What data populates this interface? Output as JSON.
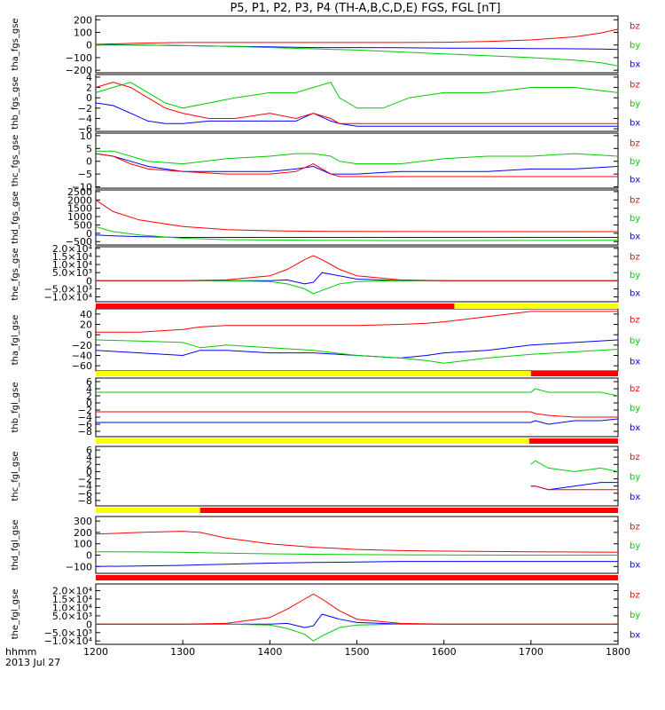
{
  "title": "P5, P1, P2, P3, P4 (TH-A,B,C,D,E) FGS, FGL [nT]",
  "x_axis": {
    "ticks": [
      "1200",
      "1300",
      "1400",
      "1500",
      "1600",
      "1700",
      "1800"
    ],
    "footer_format": "hhmm",
    "footer_date": "2013 Jul 27"
  },
  "colors": {
    "bx": "#0000ff",
    "by": "#00cc00",
    "bz": "#ff0000",
    "bar_red": "#ff0000",
    "bar_yellow": "#ffff00"
  },
  "chart_data": [
    {
      "type": "line",
      "ylabel": "tha_fgs_gse",
      "ylim": [
        -220,
        230
      ],
      "yticks": [
        "200",
        "100",
        "0",
        "−100",
        "−200"
      ],
      "ytick_values": [
        200,
        100,
        0,
        -100,
        -200
      ],
      "legend": [
        "bz",
        "by",
        "bx"
      ],
      "x": [
        1200,
        1250,
        1300,
        1350,
        1400,
        1450,
        1500,
        1550,
        1600,
        1650,
        1700,
        1750,
        1780,
        1800
      ],
      "series": [
        {
          "name": "bx",
          "values": [
            5,
            0,
            -5,
            -10,
            -15,
            -20,
            -20,
            -22,
            -25,
            -25,
            -28,
            -30,
            -32,
            -35
          ]
        },
        {
          "name": "by",
          "values": [
            0,
            0,
            -5,
            -10,
            -20,
            -30,
            -40,
            -55,
            -70,
            -85,
            -100,
            -120,
            -140,
            -165
          ]
        },
        {
          "name": "bz",
          "values": [
            5,
            15,
            20,
            20,
            20,
            20,
            20,
            20,
            22,
            28,
            40,
            65,
            95,
            125
          ]
        }
      ]
    },
    {
      "type": "line",
      "ylabel": "thb_fgs_gse",
      "ylim": [
        -6.5,
        4.5
      ],
      "yticks": [
        "4",
        "2",
        "0",
        "−2",
        "−4",
        "−6"
      ],
      "ytick_values": [
        4,
        2,
        0,
        -2,
        -4,
        -6
      ],
      "legend": [
        "bz",
        "by",
        "bx"
      ],
      "x": [
        1200,
        1220,
        1240,
        1260,
        1280,
        1300,
        1330,
        1360,
        1400,
        1430,
        1450,
        1470,
        1480,
        1500,
        1530,
        1560,
        1600,
        1650,
        1700,
        1750,
        1800
      ],
      "series": [
        {
          "name": "bx",
          "values": [
            -1,
            -1.5,
            -3,
            -4.5,
            -5,
            -5,
            -4.5,
            -4.5,
            -4.5,
            -4.5,
            -3,
            -4.5,
            -5,
            -5.5,
            -5.5,
            -5.5,
            -5.5,
            -5.5,
            -5.5,
            -5.5,
            -5.5
          ]
        },
        {
          "name": "by",
          "values": [
            1,
            2,
            3,
            1,
            -1,
            -2,
            -1,
            0,
            1,
            1,
            2,
            3,
            0,
            -2,
            -2,
            0,
            1,
            1,
            2,
            2,
            1
          ]
        },
        {
          "name": "bz",
          "values": [
            2,
            3,
            2,
            0,
            -2,
            -3,
            -4,
            -4,
            -3,
            -4,
            -3,
            -4,
            -5,
            -5,
            -5,
            -5,
            -5,
            -5,
            -5,
            -5,
            -5
          ]
        }
      ]
    },
    {
      "type": "line",
      "ylabel": "thc_fgs_gse",
      "ylim": [
        -10.5,
        11
      ],
      "yticks": [
        "10",
        "5",
        "0",
        "−5",
        "−10"
      ],
      "ytick_values": [
        10,
        5,
        0,
        -5,
        -10
      ],
      "legend": [
        "bz",
        "by",
        "bx"
      ],
      "x": [
        1200,
        1220,
        1240,
        1260,
        1300,
        1350,
        1400,
        1430,
        1450,
        1470,
        1480,
        1500,
        1550,
        1600,
        1650,
        1700,
        1750,
        1800
      ],
      "series": [
        {
          "name": "bx",
          "values": [
            3,
            2,
            0,
            -2,
            -4,
            -4,
            -4,
            -3,
            -2,
            -5,
            -5,
            -5,
            -4,
            -4,
            -4,
            -3,
            -3,
            -2
          ]
        },
        {
          "name": "by",
          "values": [
            4,
            4,
            2,
            0,
            -1,
            1,
            2,
            3,
            3,
            2,
            0,
            -1,
            -1,
            1,
            2,
            2,
            3,
            2
          ]
        },
        {
          "name": "bz",
          "values": [
            3,
            2,
            -1,
            -3,
            -4,
            -5,
            -5,
            -4,
            -1,
            -5,
            -6,
            -6,
            -6,
            -6,
            -6,
            -6,
            -6,
            -6
          ]
        }
      ]
    },
    {
      "type": "line",
      "ylabel": "thd_fgs_gse",
      "ylim": [
        -700,
        2600
      ],
      "yticks": [
        "2500",
        "2000",
        "1500",
        "1000",
        "500",
        "0",
        "−500"
      ],
      "ytick_values": [
        2500,
        2000,
        1500,
        1000,
        500,
        0,
        -500
      ],
      "legend": [
        "bz",
        "by",
        "bx"
      ],
      "x": [
        1200,
        1220,
        1250,
        1300,
        1350,
        1400,
        1450,
        1500,
        1550,
        1600,
        1700,
        1800
      ],
      "series": [
        {
          "name": "bx",
          "values": [
            -100,
            -150,
            -200,
            -250,
            -250,
            -250,
            -250,
            -250,
            -250,
            -250,
            -250,
            -250
          ]
        },
        {
          "name": "by",
          "values": [
            400,
            100,
            -100,
            -300,
            -380,
            -400,
            -420,
            -430,
            -440,
            -440,
            -430,
            -420
          ]
        },
        {
          "name": "bz",
          "values": [
            2000,
            1300,
            800,
            400,
            220,
            150,
            120,
            110,
            105,
            100,
            100,
            100
          ]
        }
      ]
    },
    {
      "type": "line",
      "ylabel": "the_fgs_gse",
      "ylim": [
        -13000,
        21000
      ],
      "yticks": [
        "2.0×10⁴",
        "1.5×10⁴",
        "1.0×10⁴",
        "5.0×10³",
        "0",
        "−5.0×10³",
        "−1.0×10⁴"
      ],
      "ytick_values": [
        20000,
        15000,
        10000,
        5000,
        0,
        -5000,
        -10000
      ],
      "legend": [
        "bz",
        "by",
        "bx"
      ],
      "x": [
        1200,
        1300,
        1350,
        1400,
        1420,
        1440,
        1450,
        1460,
        1480,
        1500,
        1550,
        1600,
        1700,
        1800
      ],
      "series": [
        {
          "name": "bx",
          "values": [
            0,
            0,
            0,
            0,
            500,
            -2000,
            -1000,
            5000,
            3000,
            1000,
            0,
            0,
            0,
            0
          ]
        },
        {
          "name": "by",
          "values": [
            0,
            0,
            0,
            -500,
            -2000,
            -5000,
            -8000,
            -6000,
            -2000,
            -500,
            0,
            0,
            0,
            0
          ]
        },
        {
          "name": "bz",
          "values": [
            0,
            0,
            500,
            3000,
            7000,
            13000,
            15500,
            13000,
            7000,
            3000,
            500,
            0,
            0,
            0
          ]
        }
      ]
    },
    {
      "type": "line",
      "ylabel": "tha_fgl_gse",
      "ylim": [
        -70,
        50
      ],
      "yticks": [
        "40",
        "20",
        "0",
        "−20",
        "−40",
        "−60"
      ],
      "ytick_values": [
        40,
        20,
        0,
        -20,
        -40,
        -60
      ],
      "legend": [
        "bz",
        "by",
        "bx"
      ],
      "x": [
        1200,
        1250,
        1300,
        1320,
        1350,
        1400,
        1450,
        1500,
        1550,
        1580,
        1600,
        1650,
        1700,
        1750,
        1800
      ],
      "series": [
        {
          "name": "bx",
          "values": [
            -30,
            -35,
            -40,
            -30,
            -30,
            -35,
            -35,
            -40,
            -45,
            -40,
            -35,
            -30,
            -20,
            -15,
            -10
          ]
        },
        {
          "name": "by",
          "values": [
            -10,
            -12,
            -15,
            -25,
            -20,
            -25,
            -30,
            -40,
            -45,
            -50,
            -55,
            -45,
            -38,
            -33,
            -28
          ]
        },
        {
          "name": "bz",
          "values": [
            5,
            5,
            10,
            15,
            18,
            18,
            18,
            18,
            20,
            22,
            25,
            35,
            45,
            45,
            45
          ]
        }
      ]
    },
    {
      "type": "line",
      "ylabel": "thb_fgl_gse",
      "ylim": [
        -9.5,
        7
      ],
      "yticks": [
        "6",
        "4",
        "2",
        "0",
        "−2",
        "−4",
        "−6",
        "−8"
      ],
      "ytick_values": [
        6,
        4,
        2,
        0,
        -2,
        -4,
        -6,
        -8
      ],
      "legend": [
        "bz",
        "by",
        "bx"
      ],
      "x": [
        1200,
        1500,
        1700,
        1705,
        1720,
        1750,
        1780,
        1800
      ],
      "series": [
        {
          "name": "bx",
          "values": [
            -5.5,
            -5.5,
            -5.5,
            -5,
            -6,
            -5,
            -5,
            -4.5
          ]
        },
        {
          "name": "by",
          "values": [
            3,
            3,
            3,
            4,
            3,
            3,
            3,
            2
          ]
        },
        {
          "name": "bz",
          "values": [
            -2.5,
            -2.5,
            -2.5,
            -3,
            -3.5,
            -4,
            -4,
            -4
          ]
        }
      ]
    },
    {
      "type": "line",
      "ylabel": "thc_fgl_gse",
      "ylim": [
        -9.5,
        7
      ],
      "yticks": [
        "6",
        "4",
        "2",
        "0",
        "−2",
        "−4",
        "−6",
        "−8"
      ],
      "ytick_values": [
        6,
        4,
        2,
        0,
        -2,
        -4,
        -6,
        -8
      ],
      "legend": [
        "bz",
        "by",
        "bx"
      ],
      "x": [
        1700,
        1705,
        1720,
        1750,
        1780,
        1800
      ],
      "series": [
        {
          "name": "bx",
          "values": [
            -4,
            -4,
            -5,
            -4,
            -3,
            -3
          ]
        },
        {
          "name": "by",
          "values": [
            2,
            3,
            1,
            0,
            1,
            0
          ]
        },
        {
          "name": "bz",
          "values": [
            -4,
            -4,
            -5,
            -5,
            -5,
            -5
          ]
        }
      ]
    },
    {
      "type": "line",
      "ylabel": "thd_fgl_gse",
      "ylim": [
        -160,
        340
      ],
      "yticks": [
        "300",
        "200",
        "100",
        "0",
        "−100"
      ],
      "ytick_values": [
        300,
        200,
        100,
        0,
        -100
      ],
      "legend": [
        "bz",
        "by",
        "bx"
      ],
      "x": [
        1200,
        1250,
        1300,
        1320,
        1350,
        1400,
        1450,
        1500,
        1550,
        1600,
        1700,
        1800
      ],
      "series": [
        {
          "name": "bx",
          "values": [
            -100,
            -95,
            -90,
            -85,
            -80,
            -70,
            -65,
            -60,
            -55,
            -55,
            -55,
            -55
          ]
        },
        {
          "name": "by",
          "values": [
            30,
            28,
            25,
            22,
            18,
            12,
            8,
            5,
            3,
            2,
            0,
            0
          ]
        },
        {
          "name": "bz",
          "values": [
            185,
            200,
            210,
            200,
            150,
            100,
            70,
            50,
            40,
            35,
            30,
            25
          ]
        }
      ]
    },
    {
      "type": "line",
      "ylabel": "the_fgl_gse",
      "ylim": [
        -12000,
        24000
      ],
      "yticks": [
        "2.0×10⁴",
        "1.5×10⁴",
        "1.0×10⁴",
        "5.0×10³",
        "0",
        "−5.0×10³",
        "−1.0×10⁴"
      ],
      "ytick_values": [
        20000,
        15000,
        10000,
        5000,
        0,
        -5000,
        -10000
      ],
      "legend": [
        "bz",
        "by",
        "bx"
      ],
      "x": [
        1200,
        1300,
        1350,
        1400,
        1420,
        1440,
        1450,
        1460,
        1480,
        1500,
        1550,
        1600,
        1700,
        1800
      ],
      "series": [
        {
          "name": "bx",
          "values": [
            0,
            0,
            0,
            0,
            500,
            -2000,
            -1000,
            6000,
            3000,
            1000,
            0,
            0,
            0,
            0
          ]
        },
        {
          "name": "by",
          "values": [
            0,
            0,
            0,
            -500,
            -2500,
            -6000,
            -10000,
            -7000,
            -2000,
            -500,
            0,
            0,
            0,
            0
          ]
        },
        {
          "name": "bz",
          "values": [
            0,
            0,
            500,
            4000,
            9000,
            15000,
            18000,
            15000,
            8000,
            3000,
            500,
            0,
            0,
            0
          ]
        }
      ]
    }
  ],
  "mode_bars": [
    {
      "segments": [
        {
          "from": 1200,
          "to": 1612,
          "color": "red"
        },
        {
          "from": 1612,
          "to": 1800,
          "color": "yellow"
        }
      ]
    },
    {
      "segments": [
        {
          "from": 1200,
          "to": 1700,
          "color": "yellow"
        },
        {
          "from": 1700,
          "to": 1800,
          "color": "red"
        }
      ]
    },
    {
      "segments": [
        {
          "from": 1200,
          "to": 1698,
          "color": "yellow"
        },
        {
          "from": 1698,
          "to": 1800,
          "color": "red"
        }
      ]
    },
    {
      "segments": [
        {
          "from": 1200,
          "to": 1320,
          "color": "yellow"
        },
        {
          "from": 1320,
          "to": 1800,
          "color": "red"
        }
      ]
    },
    {
      "segments": [
        {
          "from": 1200,
          "to": 1800,
          "color": "red"
        }
      ]
    }
  ]
}
